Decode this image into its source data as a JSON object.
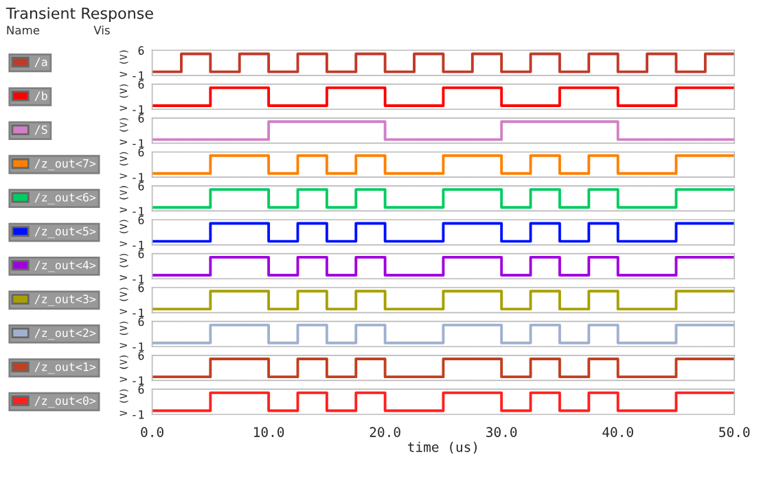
{
  "chart_data": [
    {
      "type": "step",
      "title": "Transient Response",
      "annotations": [
        "Name",
        "Vis"
      ],
      "ylabel": "V (V)",
      "xlim": [
        0,
        50
      ],
      "ylim": [
        -1,
        6
      ],
      "yticks": [
        -1,
        6
      ],
      "tick_labels": "y",
      "grid": true,
      "legend": "left",
      "line_style": "solid",
      "series": [
        {
          "name": "/a",
          "color": "#c03a28",
          "x": [
            0,
            2.5,
            5,
            7.5,
            10,
            12.5,
            15,
            17.5,
            20,
            22.5,
            25,
            27.5,
            30,
            32.5,
            35,
            37.5,
            40,
            42.5,
            45,
            47.5,
            50
          ],
          "values": [
            0,
            5,
            0,
            5,
            0,
            5,
            0,
            5,
            0,
            5,
            0,
            5,
            0,
            5,
            0,
            5,
            0,
            5,
            0,
            5,
            5
          ]
        }
      ]
    },
    {
      "type": "step",
      "ylabel": "V (V)",
      "xlim": [
        0,
        50
      ],
      "ylim": [
        -1,
        6
      ],
      "yticks": [
        -1,
        6
      ],
      "tick_labels": "y",
      "grid": true,
      "legend": "left",
      "line_style": "solid",
      "series": [
        {
          "name": "/b",
          "color": "#ff0000",
          "x": [
            0,
            5,
            10,
            15,
            20,
            25,
            30,
            35,
            40,
            45,
            50
          ],
          "values": [
            0,
            5,
            0,
            5,
            0,
            5,
            0,
            5,
            0,
            5,
            5
          ]
        }
      ]
    },
    {
      "type": "step",
      "ylabel": "V (V)",
      "xlim": [
        0,
        50
      ],
      "ylim": [
        -1,
        6
      ],
      "yticks": [
        -1,
        6
      ],
      "tick_labels": "y",
      "grid": true,
      "legend": "left",
      "line_style": "solid",
      "series": [
        {
          "name": "/S",
          "color": "#d080c8",
          "x": [
            0,
            10,
            20,
            30,
            40,
            50
          ],
          "values": [
            0,
            5,
            0,
            5,
            0,
            0
          ]
        }
      ]
    },
    {
      "type": "step",
      "ylabel": "V (V)",
      "xlim": [
        0,
        50
      ],
      "ylim": [
        -1,
        6
      ],
      "yticks": [
        -1,
        6
      ],
      "tick_labels": "y",
      "grid": true,
      "legend": "left",
      "line_style": "solid",
      "series": [
        {
          "name": "/z_out<7>",
          "color": "#ff8000",
          "x": [
            0,
            5,
            10,
            12.5,
            15,
            17.5,
            20,
            25,
            30,
            32.5,
            35,
            37.5,
            40,
            45,
            50
          ],
          "values": [
            0,
            5,
            0,
            5,
            0,
            5,
            0,
            5,
            0,
            5,
            0,
            5,
            0,
            5,
            5
          ]
        }
      ]
    },
    {
      "type": "step",
      "ylabel": "V (V)",
      "xlim": [
        0,
        50
      ],
      "ylim": [
        -1,
        6
      ],
      "yticks": [
        -1,
        6
      ],
      "tick_labels": "y",
      "grid": true,
      "legend": "left",
      "line_style": "solid",
      "series": [
        {
          "name": "/z_out<6>",
          "color": "#00cc60",
          "x": [
            0,
            5,
            10,
            12.5,
            15,
            17.5,
            20,
            25,
            30,
            32.5,
            35,
            37.5,
            40,
            45,
            50
          ],
          "values": [
            0,
            5,
            0,
            5,
            0,
            5,
            0,
            5,
            0,
            5,
            0,
            5,
            0,
            5,
            5
          ]
        }
      ]
    },
    {
      "type": "step",
      "ylabel": "V (V)",
      "xlim": [
        0,
        50
      ],
      "ylim": [
        -1,
        6
      ],
      "yticks": [
        -1,
        6
      ],
      "tick_labels": "y",
      "grid": true,
      "legend": "left",
      "line_style": "solid",
      "series": [
        {
          "name": "/z_out<5>",
          "color": "#0010ff",
          "x": [
            0,
            5,
            10,
            12.5,
            15,
            17.5,
            20,
            25,
            30,
            32.5,
            35,
            37.5,
            40,
            45,
            50
          ],
          "values": [
            0,
            5,
            0,
            5,
            0,
            5,
            0,
            5,
            0,
            5,
            0,
            5,
            0,
            5,
            5
          ]
        }
      ]
    },
    {
      "type": "step",
      "ylabel": "V (V)",
      "xlim": [
        0,
        50
      ],
      "ylim": [
        -1,
        6
      ],
      "yticks": [
        -1,
        6
      ],
      "tick_labels": "y",
      "grid": true,
      "legend": "left",
      "line_style": "solid",
      "series": [
        {
          "name": "/z_out<4>",
          "color": "#a000e0",
          "x": [
            0,
            5,
            10,
            12.5,
            15,
            17.5,
            20,
            25,
            30,
            32.5,
            35,
            37.5,
            40,
            45,
            50
          ],
          "values": [
            0,
            5,
            0,
            5,
            0,
            5,
            0,
            5,
            0,
            5,
            0,
            5,
            0,
            5,
            5
          ]
        }
      ]
    },
    {
      "type": "step",
      "ylabel": "V (V)",
      "xlim": [
        0,
        50
      ],
      "ylim": [
        -1,
        6
      ],
      "yticks": [
        -1,
        6
      ],
      "tick_labels": "y",
      "grid": true,
      "legend": "left",
      "line_style": "solid",
      "series": [
        {
          "name": "/z_out<3>",
          "color": "#a8a000",
          "x": [
            0,
            5,
            10,
            12.5,
            15,
            17.5,
            20,
            25,
            30,
            32.5,
            35,
            37.5,
            40,
            45,
            50
          ],
          "values": [
            0,
            5,
            0,
            5,
            0,
            5,
            0,
            5,
            0,
            5,
            0,
            5,
            0,
            5,
            5
          ]
        }
      ]
    },
    {
      "type": "step",
      "ylabel": "V (V)",
      "xlim": [
        0,
        50
      ],
      "ylim": [
        -1,
        6
      ],
      "yticks": [
        -1,
        6
      ],
      "tick_labels": "y",
      "grid": true,
      "legend": "left",
      "line_style": "solid",
      "series": [
        {
          "name": "/z_out<2>",
          "color": "#a0b0d0",
          "x": [
            0,
            5,
            10,
            12.5,
            15,
            17.5,
            20,
            25,
            30,
            32.5,
            35,
            37.5,
            40,
            45,
            50
          ],
          "values": [
            0,
            5,
            0,
            5,
            0,
            5,
            0,
            5,
            0,
            5,
            0,
            5,
            0,
            5,
            5
          ]
        }
      ]
    },
    {
      "type": "step",
      "ylabel": "V (V)",
      "xlim": [
        0,
        50
      ],
      "ylim": [
        -1,
        6
      ],
      "yticks": [
        -1,
        6
      ],
      "tick_labels": "y",
      "grid": true,
      "legend": "left",
      "line_style": "solid",
      "series": [
        {
          "name": "/z_out<1>",
          "color": "#c04020",
          "x": [
            0,
            5,
            10,
            12.5,
            15,
            17.5,
            20,
            25,
            30,
            32.5,
            35,
            37.5,
            40,
            45,
            50
          ],
          "values": [
            0,
            5,
            0,
            5,
            0,
            5,
            0,
            5,
            0,
            5,
            0,
            5,
            0,
            5,
            5
          ]
        }
      ]
    },
    {
      "type": "step",
      "ylabel": "V (V)",
      "xlabel": "time (us)",
      "xlim": [
        0,
        50
      ],
      "xticks": [
        {
          "value": 0,
          "label": "0.0"
        },
        {
          "value": 10,
          "label": "10.0"
        },
        {
          "value": 20,
          "label": "20.0"
        },
        {
          "value": 30,
          "label": "30.0"
        },
        {
          "value": 40,
          "label": "40.0"
        },
        {
          "value": 50,
          "label": "50.0"
        }
      ],
      "ylim": [
        -1,
        6
      ],
      "yticks": [
        -1,
        6
      ],
      "grid": true,
      "legend": "left",
      "line_style": "solid",
      "series": [
        {
          "name": "/z_out<0>",
          "color": "#ff2020",
          "x": [
            0,
            5,
            10,
            12.5,
            15,
            17.5,
            20,
            25,
            30,
            32.5,
            35,
            37.5,
            40,
            45,
            50
          ],
          "values": [
            0,
            5,
            0,
            5,
            0,
            5,
            0,
            5,
            0,
            5,
            0,
            5,
            0,
            5,
            5
          ]
        }
      ]
    }
  ]
}
